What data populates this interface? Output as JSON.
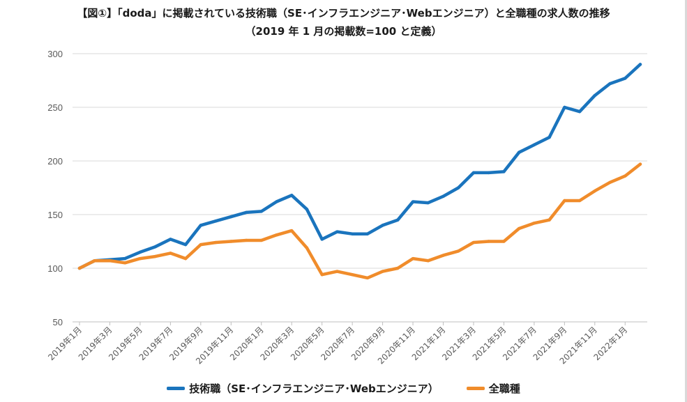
{
  "chart_data": {
    "type": "line",
    "title": "【図①】「doda」に掲載されている技術職（SE･インフラエンジニア･Webエンジニア）と全職種の求人数の推移",
    "subtitle": "（2019 年 1 月の掲載数=100 と定義）",
    "xlabel": "",
    "ylabel": "",
    "ylim": [
      50,
      300
    ],
    "yticks": [
      50,
      100,
      150,
      200,
      250,
      300
    ],
    "grid": true,
    "legend_position": "bottom",
    "categories": [
      "2019年1月",
      "2019年2月",
      "2019年3月",
      "2019年4月",
      "2019年5月",
      "2019年6月",
      "2019年7月",
      "2019年8月",
      "2019年9月",
      "2019年10月",
      "2019年11月",
      "2019年12月",
      "2020年1月",
      "2020年2月",
      "2020年3月",
      "2020年4月",
      "2020年5月",
      "2020年6月",
      "2020年7月",
      "2020年8月",
      "2020年9月",
      "2020年10月",
      "2020年11月",
      "2020年12月",
      "2021年1月",
      "2021年2月",
      "2021年3月",
      "2021年4月",
      "2021年5月",
      "2021年6月",
      "2021年7月",
      "2021年8月",
      "2021年9月",
      "2021年10月",
      "2021年11月",
      "2021年12月",
      "2022年1月",
      "2022年2月"
    ],
    "tick_labels": [
      "2019年1月",
      "2019年3月",
      "2019年5月",
      "2019年7月",
      "2019年9月",
      "2019年11月",
      "2020年1月",
      "2020年3月",
      "2020年5月",
      "2020年7月",
      "2020年9月",
      "2020年11月",
      "2021年1月",
      "2021年3月",
      "2021年5月",
      "2021年7月",
      "2021年9月",
      "2021年11月",
      "2022年1月"
    ],
    "series": [
      {
        "name": "技術職（SE･インフラエンジニア･Webエンジニア）",
        "color": "#1a74bd",
        "values": [
          100,
          107,
          108,
          109,
          115,
          120,
          127,
          122,
          140,
          144,
          148,
          152,
          153,
          162,
          168,
          155,
          127,
          134,
          132,
          132,
          140,
          145,
          162,
          161,
          167,
          175,
          189,
          189,
          190,
          208,
          215,
          222,
          250,
          246,
          261,
          272,
          277,
          290
        ]
      },
      {
        "name": "全職種",
        "color": "#f08c2b",
        "values": [
          100,
          107,
          107,
          105,
          109,
          111,
          114,
          109,
          122,
          124,
          125,
          126,
          126,
          131,
          135,
          119,
          94,
          97,
          94,
          91,
          97,
          100,
          109,
          107,
          112,
          116,
          124,
          125,
          125,
          137,
          142,
          145,
          163,
          163,
          172,
          180,
          186,
          197
        ]
      }
    ]
  }
}
